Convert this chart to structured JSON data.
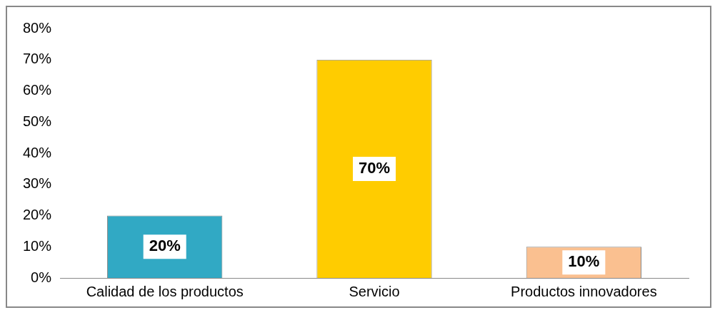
{
  "chart_data": {
    "type": "bar",
    "categories": [
      "Calidad de los productos",
      "Servicio",
      "Productos innovadores"
    ],
    "values": [
      20,
      70,
      10
    ],
    "colors": [
      "#31a9c4",
      "#ffcc00",
      "#fac090"
    ],
    "value_labels": [
      "20%",
      "70%",
      "10%"
    ],
    "ylim": [
      0,
      80
    ],
    "yticks": [
      {
        "value": 0,
        "label": "0%"
      },
      {
        "value": 10,
        "label": "10%"
      },
      {
        "value": 20,
        "label": "20%"
      },
      {
        "value": 30,
        "label": "30%"
      },
      {
        "value": 40,
        "label": "40%"
      },
      {
        "value": 50,
        "label": "50%"
      },
      {
        "value": 60,
        "label": "60%"
      },
      {
        "value": 70,
        "label": "70%"
      },
      {
        "value": 80,
        "label": "80%"
      }
    ],
    "grid": false,
    "legend": false
  }
}
